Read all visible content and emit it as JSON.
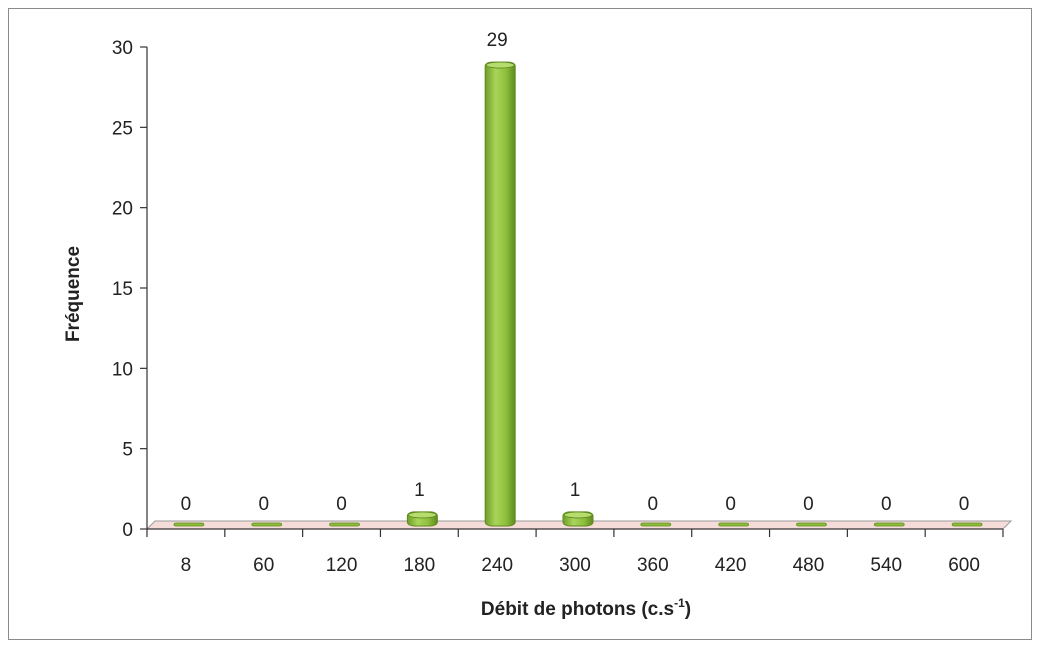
{
  "chart_data": {
    "type": "bar",
    "title": "",
    "xlabel": "Débit de photons (c.s",
    "xlabel_superscript": "-1",
    "xlabel_suffix": ")",
    "ylabel": "Fréquence",
    "categories": [
      "8",
      "60",
      "120",
      "180",
      "240",
      "300",
      "360",
      "420",
      "480",
      "540",
      "600"
    ],
    "values": [
      0,
      0,
      0,
      1,
      29,
      1,
      0,
      0,
      0,
      0,
      0
    ],
    "data_labels": [
      "0",
      "0",
      "0",
      "1",
      "29",
      "1",
      "0",
      "0",
      "0",
      "0",
      "0"
    ],
    "ylim": [
      0,
      30
    ],
    "yticks": [
      "0",
      "5",
      "10",
      "15",
      "20",
      "25",
      "30"
    ],
    "grid": false,
    "legend": "none",
    "style": "3d",
    "colors": {
      "bar": "#8dbe3b",
      "bar_dark": "#5e8a1f",
      "bar_light": "#b6dc6e",
      "floor": "#f6dcd8",
      "axis": "#333333"
    }
  }
}
